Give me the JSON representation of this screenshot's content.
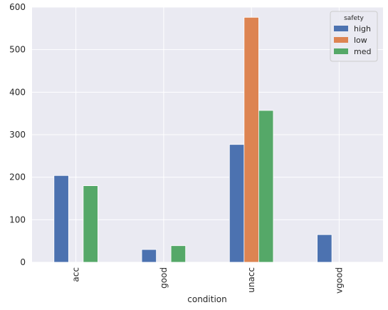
{
  "chart_data": {
    "type": "bar",
    "title": "",
    "xlabel": "condition",
    "ylabel": "",
    "categories": [
      "acc",
      "good",
      "unacc",
      "vgood"
    ],
    "series": [
      {
        "name": "high",
        "values": [
          204,
          30,
          277,
          65
        ],
        "color": "#4c72b0"
      },
      {
        "name": "low",
        "values": [
          0,
          0,
          576,
          0
        ],
        "color": "#dd8452"
      },
      {
        "name": "med",
        "values": [
          180,
          39,
          357,
          0
        ],
        "color": "#55a868"
      }
    ],
    "ylim": [
      0,
      600
    ],
    "yticks": [
      0,
      100,
      200,
      300,
      400,
      500,
      600
    ],
    "grid": true,
    "background": "#eaeaf2",
    "legend_title": "safety",
    "legend_position": "top-right",
    "x_tick_rotation": "vertical"
  }
}
